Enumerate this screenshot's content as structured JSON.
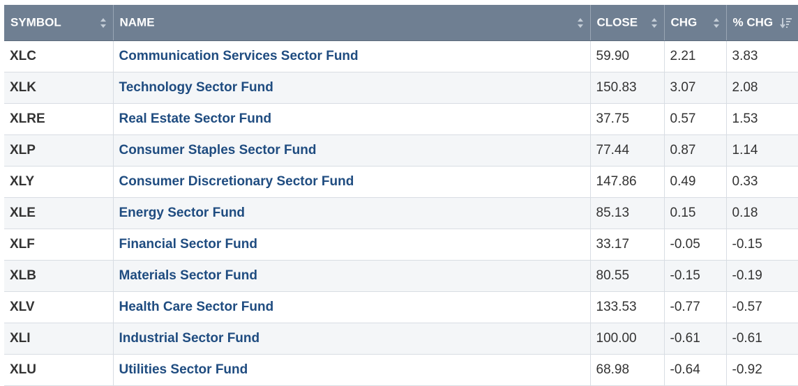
{
  "table": {
    "headers": {
      "symbol": "SYMBOL",
      "name": "NAME",
      "close": "CLOSE",
      "chg": "CHG",
      "pct_chg": "% CHG"
    },
    "sort": {
      "column": "% CHG",
      "direction": "descending"
    },
    "rows": [
      {
        "symbol": "XLC",
        "name": "Communication Services Sector Fund",
        "close": "59.90",
        "chg": "2.21",
        "pct_chg": "3.83"
      },
      {
        "symbol": "XLK",
        "name": "Technology Sector Fund",
        "close": "150.83",
        "chg": "3.07",
        "pct_chg": "2.08"
      },
      {
        "symbol": "XLRE",
        "name": "Real Estate Sector Fund",
        "close": "37.75",
        "chg": "0.57",
        "pct_chg": "1.53"
      },
      {
        "symbol": "XLP",
        "name": "Consumer Staples Sector Fund",
        "close": "77.44",
        "chg": "0.87",
        "pct_chg": "1.14"
      },
      {
        "symbol": "XLY",
        "name": "Consumer Discretionary Sector Fund",
        "close": "147.86",
        "chg": "0.49",
        "pct_chg": "0.33"
      },
      {
        "symbol": "XLE",
        "name": "Energy Sector Fund",
        "close": "85.13",
        "chg": "0.15",
        "pct_chg": "0.18"
      },
      {
        "symbol": "XLF",
        "name": "Financial Sector Fund",
        "close": "33.17",
        "chg": "-0.05",
        "pct_chg": "-0.15"
      },
      {
        "symbol": "XLB",
        "name": "Materials Sector Fund",
        "close": "80.55",
        "chg": "-0.15",
        "pct_chg": "-0.19"
      },
      {
        "symbol": "XLV",
        "name": "Health Care Sector Fund",
        "close": "133.53",
        "chg": "-0.77",
        "pct_chg": "-0.57"
      },
      {
        "symbol": "XLI",
        "name": "Industrial Sector Fund",
        "close": "100.00",
        "chg": "-0.61",
        "pct_chg": "-0.61"
      },
      {
        "symbol": "XLU",
        "name": "Utilities Sector Fund",
        "close": "68.98",
        "chg": "-0.64",
        "pct_chg": "-0.92"
      }
    ]
  },
  "colors": {
    "header_bg": "#6f7f92",
    "header_text": "#ffffff",
    "link": "#1f4c80",
    "row_alt": "#f4f6f8"
  }
}
